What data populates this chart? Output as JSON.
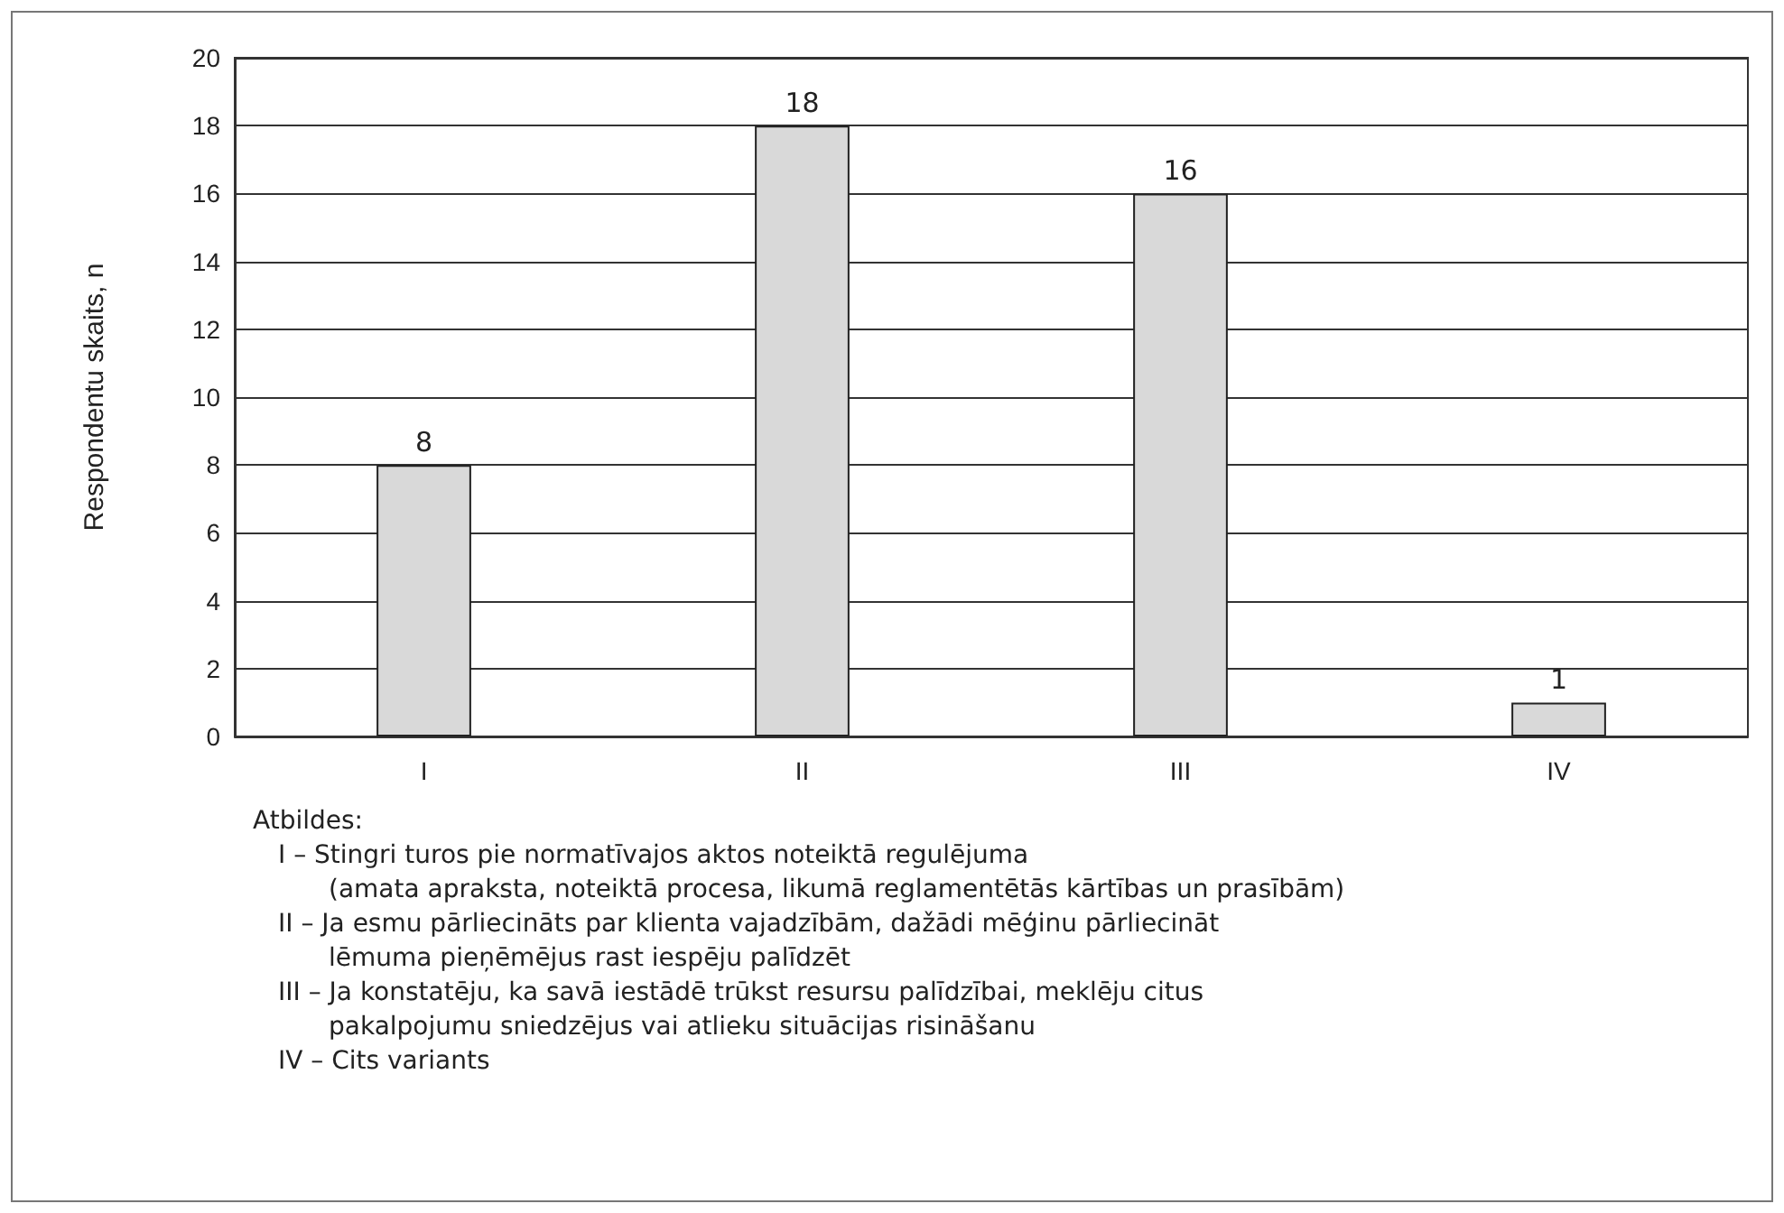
{
  "chart_data": {
    "type": "bar",
    "categories": [
      "I",
      "II",
      "III",
      "IV"
    ],
    "values": [
      8,
      18,
      16,
      1
    ],
    "color": "#d9d9d9",
    "data_labels": true,
    "ylabel": "Respondentu skaits, n",
    "ylim": [
      0,
      20
    ],
    "yticks": [
      0,
      2,
      4,
      6,
      8,
      10,
      12,
      14,
      16,
      18,
      20
    ],
    "grid": "y",
    "annotations": [
      "Atbildes:",
      "I – Stingri turos pie normatīvajos aktos noteiktā regulējuma\n(amata apraksta, noteiktā procesa, likumā reglamentētās kārtības un prasībām)",
      "II – Ja esmu pārliecināts par klienta vajadzībām, dažādi mēģinu pārliecināt\nlēmuma pieņēmējus rast iespēju palīdzēt",
      "III – Ja konstatēju, ka savā iestādē trūkst resursu palīdzībai, meklēju citus\npakalpojumu sniedzējus vai atlieku situācijas risināšanu",
      "IV – Cits variants"
    ]
  }
}
